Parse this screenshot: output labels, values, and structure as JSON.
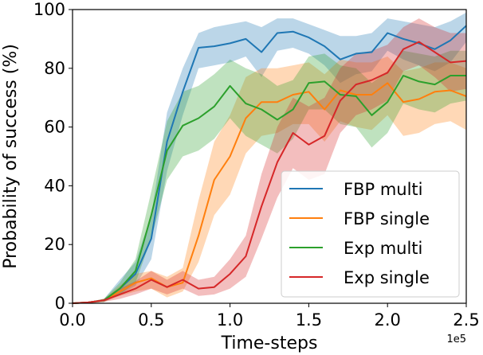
{
  "chart_data": {
    "type": "line",
    "title": "",
    "xlabel": "Time-steps",
    "ylabel": "Probability of success (%)",
    "x_offset_text": "1e5",
    "xlim": [
      0,
      2.5
    ],
    "ylim": [
      0,
      100
    ],
    "x_ticks": [
      0.0,
      0.5,
      1.0,
      1.5,
      2.0,
      2.5
    ],
    "x_tick_labels": [
      "0.0",
      "0.5",
      "1.0",
      "1.5",
      "2.0",
      "2.5"
    ],
    "y_ticks": [
      0,
      20,
      40,
      60,
      80,
      100
    ],
    "y_tick_labels": [
      "0",
      "20",
      "40",
      "60",
      "80",
      "100"
    ],
    "grid": false,
    "legend_position": "lower-right",
    "x": [
      0,
      0.1,
      0.2,
      0.3,
      0.4,
      0.5,
      0.6,
      0.7,
      0.8,
      0.9,
      1.0,
      1.1,
      1.2,
      1.3,
      1.4,
      1.5,
      1.6,
      1.7,
      1.8,
      1.9,
      2.0,
      2.1,
      2.2,
      2.3,
      2.4,
      2.5
    ],
    "series": [
      {
        "name": "FBP multi",
        "color": "#1f77b4",
        "values": [
          0,
          0.3,
          1,
          5,
          10,
          22,
          55,
          72,
          87,
          87.5,
          88.5,
          90,
          85.5,
          92,
          92.5,
          90.5,
          87.5,
          83,
          85,
          85.5,
          92,
          90,
          88.5,
          86.5,
          89.5,
          94.5
        ],
        "upper": [
          0,
          0.5,
          1.5,
          8,
          14,
          30,
          65,
          80,
          92,
          94,
          95,
          96,
          94,
          97,
          97,
          95,
          93,
          91,
          91,
          92,
          97,
          96,
          95,
          94,
          96,
          99
        ],
        "lower": [
          0,
          0,
          0.5,
          3,
          6,
          15,
          45,
          64,
          80,
          81,
          82,
          84,
          77,
          86,
          87,
          85,
          81,
          75,
          78,
          79,
          86,
          83,
          81,
          79,
          82,
          89
        ]
      },
      {
        "name": "FBP single",
        "color": "#ff7f0e",
        "values": [
          0,
          0.3,
          1,
          4,
          7,
          8.5,
          5.5,
          7,
          23,
          42,
          50,
          63,
          68.5,
          68.5,
          71,
          72,
          66,
          72.5,
          71,
          71,
          75,
          68.5,
          69.5,
          72,
          72.5,
          70.5
        ],
        "upper": [
          0,
          0.5,
          1.5,
          6,
          10,
          11,
          9,
          12,
          35,
          55,
          64,
          77,
          80,
          80,
          81,
          82,
          78,
          83,
          82,
          82,
          84,
          79,
          80,
          82,
          82,
          80
        ],
        "lower": [
          0,
          0,
          0.5,
          2.5,
          4,
          5,
          2,
          4,
          14,
          30,
          37,
          51,
          57,
          58,
          61,
          61,
          55,
          62,
          60,
          59,
          64,
          57,
          58,
          61,
          62,
          59
        ]
      },
      {
        "name": "Exp multi",
        "color": "#2ca02c",
        "values": [
          0,
          0.3,
          1,
          5,
          11,
          30,
          52,
          60.5,
          63,
          67,
          74,
          68,
          66,
          62.5,
          66,
          75,
          75.5,
          71,
          70.5,
          64,
          68.5,
          77.5,
          75.5,
          74.5,
          77.5,
          77.5
        ],
        "upper": [
          0,
          0.5,
          1.5,
          7,
          15,
          38,
          62,
          72,
          74,
          78,
          83,
          80,
          78,
          74,
          76,
          84,
          85,
          81,
          80,
          75,
          79,
          86,
          85,
          84,
          86,
          86
        ],
        "lower": [
          0,
          0,
          0.5,
          3,
          7,
          22,
          42,
          50,
          52,
          56,
          63,
          57,
          54,
          51,
          56,
          66,
          66,
          61,
          60,
          53,
          58,
          68,
          66,
          65,
          68,
          69
        ]
      },
      {
        "name": "Exp single",
        "color": "#d62728",
        "values": [
          0,
          0.3,
          1,
          3,
          5,
          8,
          5.5,
          8,
          5,
          5.5,
          10,
          16,
          33,
          48,
          58,
          54,
          57,
          69,
          74.5,
          76,
          78.5,
          86.5,
          89,
          85.5,
          82,
          82.5
        ],
        "upper": [
          0,
          0.5,
          1.5,
          5,
          7.5,
          11,
          8,
          11,
          8,
          9,
          15,
          23,
          44,
          60,
          70,
          67,
          70,
          80,
          85,
          86,
          88,
          94,
          97,
          94,
          92,
          92
        ],
        "lower": [
          0,
          0,
          0.5,
          1.5,
          3,
          5,
          3,
          5,
          2.5,
          3,
          5,
          9,
          22,
          36,
          46,
          42,
          44,
          58,
          64,
          66,
          69,
          79,
          81,
          77,
          72,
          73
        ]
      }
    ]
  }
}
